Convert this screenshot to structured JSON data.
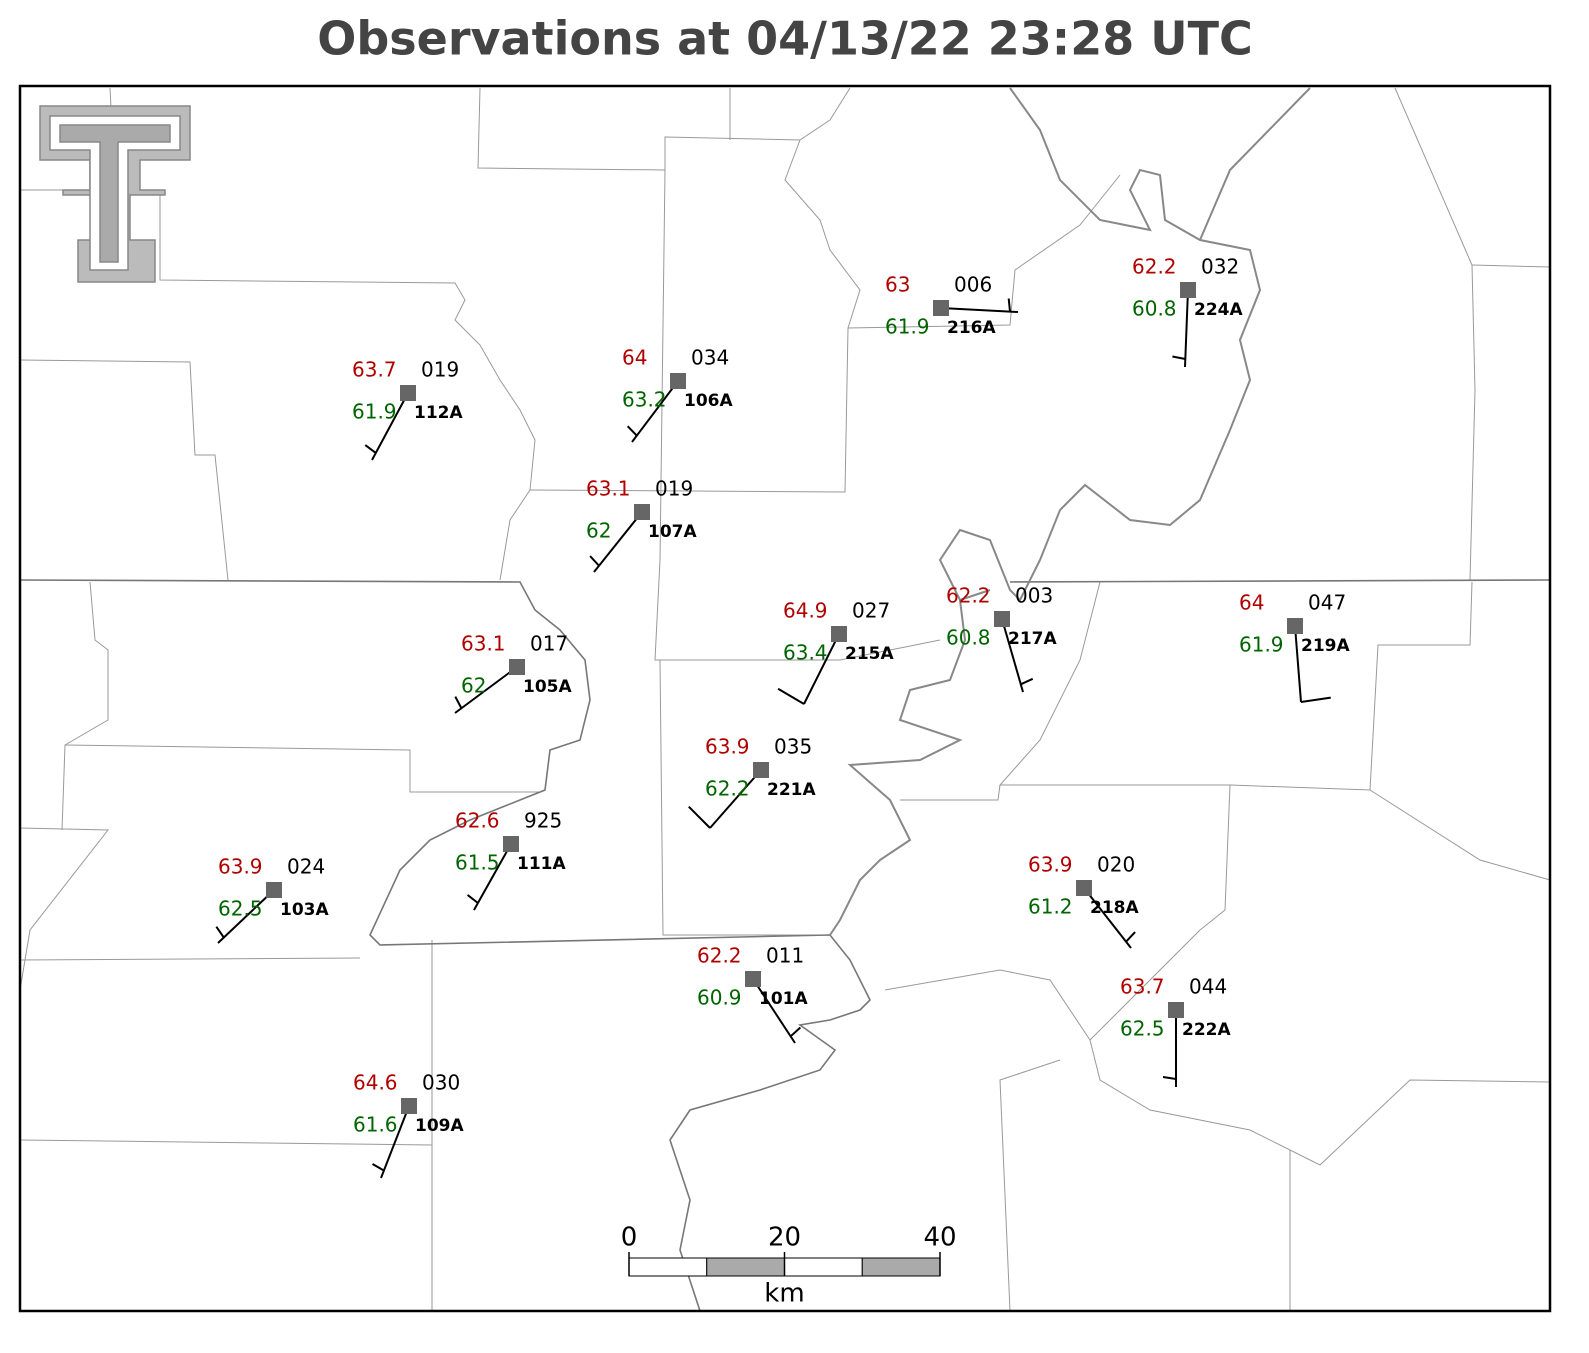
{
  "title": "Observations at 04/13/22 23:28 UTC",
  "stations": [
    {
      "id": "112A",
      "temperature": 63.7,
      "dewpoint": 61.9,
      "pressure": "019"
    },
    {
      "id": "106A",
      "temperature": 64.0,
      "dewpoint": 63.2,
      "pressure": "034"
    },
    {
      "id": "107A",
      "temperature": 63.1,
      "dewpoint": 62.0,
      "pressure": "019"
    },
    {
      "id": "216A",
      "temperature": 63.0,
      "dewpoint": 61.9,
      "pressure": "006"
    },
    {
      "id": "224A",
      "temperature": 62.2,
      "dewpoint": 60.8,
      "pressure": "032"
    },
    {
      "id": "105A",
      "temperature": 63.1,
      "dewpoint": 62.0,
      "pressure": "017"
    },
    {
      "id": "215A",
      "temperature": 64.9,
      "dewpoint": 63.4,
      "pressure": "027"
    },
    {
      "id": "217A",
      "temperature": 62.2,
      "dewpoint": 60.8,
      "pressure": "003"
    },
    {
      "id": "219A",
      "temperature": 64.0,
      "dewpoint": 61.9,
      "pressure": "047"
    },
    {
      "id": "221A",
      "temperature": 63.9,
      "dewpoint": 62.2,
      "pressure": "035"
    },
    {
      "id": "111A",
      "temperature": 62.6,
      "dewpoint": 61.5,
      "pressure": "925"
    },
    {
      "id": "103A",
      "temperature": 63.9,
      "dewpoint": 62.5,
      "pressure": "024"
    },
    {
      "id": "218A",
      "temperature": 63.9,
      "dewpoint": 61.2,
      "pressure": "020"
    },
    {
      "id": "101A",
      "temperature": 62.2,
      "dewpoint": 60.9,
      "pressure": "011"
    },
    {
      "id": "222A",
      "temperature": 63.7,
      "dewpoint": 62.5,
      "pressure": "044"
    },
    {
      "id": "109A",
      "temperature": 64.6,
      "dewpoint": 61.6,
      "pressure": "030"
    }
  ],
  "scale_bar": {
    "ticks": [
      0,
      20,
      40
    ],
    "unit": "km"
  }
}
